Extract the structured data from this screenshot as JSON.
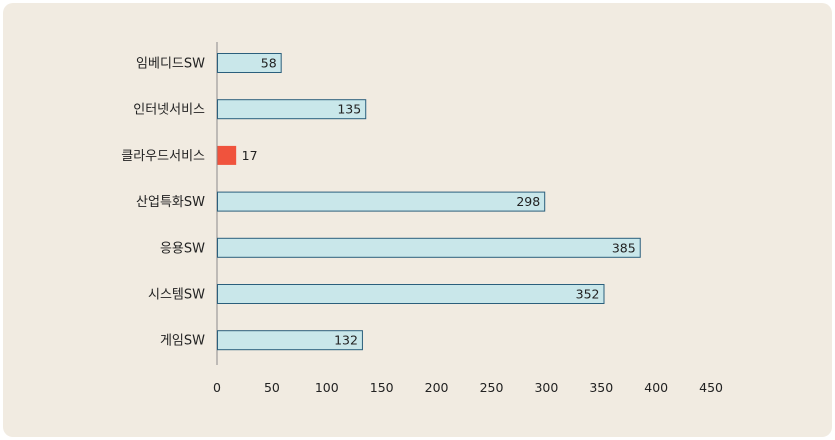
{
  "chart_data": {
    "type": "bar",
    "orientation": "horizontal",
    "categories": [
      "임베디드SW",
      "인터넷서비스",
      "클라우드서비스",
      "산업특화SW",
      "응용SW",
      "시스템SW",
      "게임SW"
    ],
    "values": [
      58,
      135,
      17,
      298,
      385,
      352,
      132
    ],
    "value_labels": [
      "58",
      "135",
      "17",
      "298",
      "385",
      "352",
      "132"
    ],
    "highlight_index": 2,
    "xlim": [
      0,
      450
    ],
    "xticks": [
      0,
      50,
      100,
      150,
      200,
      250,
      300,
      350,
      400,
      450
    ],
    "xtick_labels": [
      "0",
      "50",
      "100",
      "150",
      "200",
      "250",
      "300",
      "350",
      "400",
      "450"
    ],
    "title": "",
    "xlabel": "",
    "ylabel": "",
    "grid": false,
    "colors": {
      "bar_fill": "#c9e7ea",
      "bar_stroke": "#2b5f7c",
      "highlight_fill": "#f0533d",
      "background": "#f1ebe1",
      "axis": "#8a8a8a",
      "text": "#222222"
    }
  }
}
